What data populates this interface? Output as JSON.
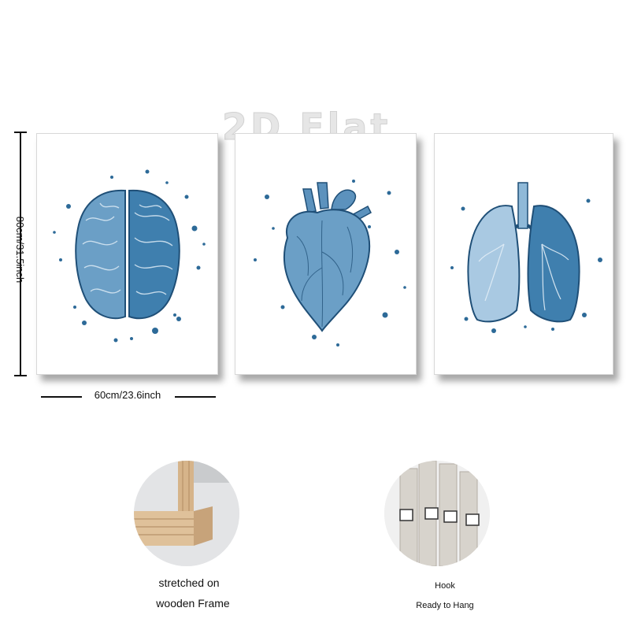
{
  "watermark": "2D Flat",
  "dimensions": {
    "height_label": "80cm/31.5inch",
    "width_label": "60cm/23.6inch"
  },
  "panels": [
    {
      "subject": "brain",
      "icon": "brain-icon"
    },
    {
      "subject": "heart",
      "icon": "heart-icon"
    },
    {
      "subject": "lungs",
      "icon": "lungs-icon"
    }
  ],
  "colors": {
    "ink_dark": "#1f4f77",
    "ink_mid": "#3f7fae",
    "ink_light": "#8fb9d8",
    "wood": "#d4b48c"
  },
  "features": {
    "frame": {
      "line1": "stretched on",
      "line2": "wooden Frame"
    },
    "hook": {
      "line1": "Hook",
      "line2": "Ready to Hang"
    }
  }
}
